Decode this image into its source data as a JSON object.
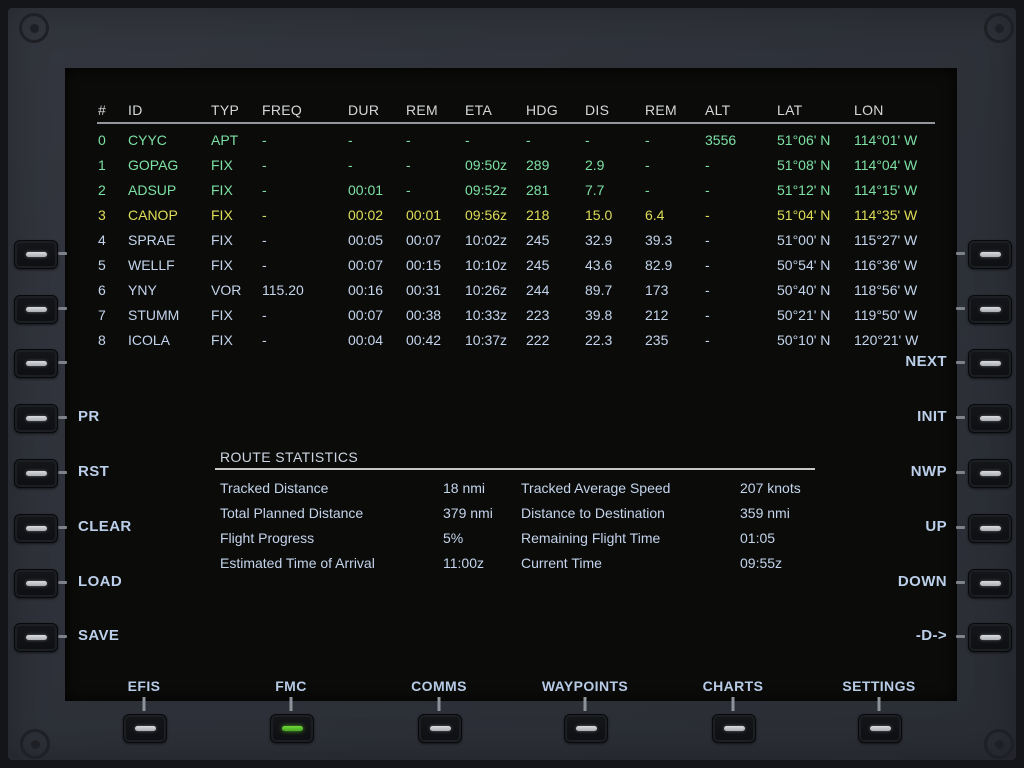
{
  "colors": {
    "green": "#7de0a4",
    "yellow": "#dedd58",
    "white": "#c4d4ec",
    "header": "#d6d7d9",
    "active_led": "#5cc42e"
  },
  "screen": {
    "table": {
      "headers": [
        "#",
        "ID",
        "TYP",
        "FREQ",
        "DUR",
        "REM",
        "ETA",
        "HDG",
        "DIS",
        "REM",
        "ALT",
        "LAT",
        "LON"
      ],
      "rows": [
        {
          "color": "green",
          "cells": [
            "0",
            "CYYC",
            "APT",
            "-",
            "-",
            "-",
            "-",
            "-",
            "-",
            "-",
            "3556",
            "51°06' N",
            "114°01' W"
          ]
        },
        {
          "color": "green",
          "cells": [
            "1",
            "GOPAG",
            "FIX",
            "-",
            "-",
            "-",
            "09:50z",
            "289",
            "2.9",
            "-",
            "-",
            "51°08' N",
            "114°04' W"
          ]
        },
        {
          "color": "green",
          "cells": [
            "2",
            "ADSUP",
            "FIX",
            "-",
            "00:01",
            "-",
            "09:52z",
            "281",
            "7.7",
            "-",
            "-",
            "51°12' N",
            "114°15' W"
          ]
        },
        {
          "color": "yellow",
          "cells": [
            "3",
            "CANOP",
            "FIX",
            "-",
            "00:02",
            "00:01",
            "09:56z",
            "218",
            "15.0",
            "6.4",
            "-",
            "51°04' N",
            "114°35' W"
          ]
        },
        {
          "color": "white",
          "cells": [
            "4",
            "SPRAE",
            "FIX",
            "-",
            "00:05",
            "00:07",
            "10:02z",
            "245",
            "32.9",
            "39.3",
            "-",
            "51°00' N",
            "115°27' W"
          ]
        },
        {
          "color": "white",
          "cells": [
            "5",
            "WELLF",
            "FIX",
            "-",
            "00:07",
            "00:15",
            "10:10z",
            "245",
            "43.6",
            "82.9",
            "-",
            "50°54' N",
            "116°36' W"
          ]
        },
        {
          "color": "white",
          "cells": [
            "6",
            "YNY",
            "VOR",
            "115.20",
            "00:16",
            "00:31",
            "10:26z",
            "244",
            "89.7",
            "173",
            "-",
            "50°40' N",
            "118°56' W"
          ]
        },
        {
          "color": "white",
          "cells": [
            "7",
            "STUMM",
            "FIX",
            "-",
            "00:07",
            "00:38",
            "10:33z",
            "223",
            "39.8",
            "212",
            "-",
            "50°21' N",
            "119°50' W"
          ]
        },
        {
          "color": "white",
          "cells": [
            "8",
            "ICOLA",
            "FIX",
            "-",
            "00:04",
            "00:42",
            "10:37z",
            "222",
            "22.3",
            "235",
            "-",
            "50°10' N",
            "120°21' W"
          ]
        }
      ]
    },
    "left_buttons": {
      "labels": [
        "",
        "",
        "",
        "PR",
        "RST",
        "CLEAR",
        "LOAD",
        "SAVE"
      ]
    },
    "right_buttons": {
      "labels": [
        "",
        "",
        "NEXT",
        "INIT",
        "NWP",
        "UP",
        "DOWN",
        "-D->"
      ]
    },
    "stats": {
      "title": "ROUTE STATISTICS",
      "items": [
        {
          "label": "Tracked Distance",
          "value": "18 nmi"
        },
        {
          "label": "Total Planned Distance",
          "value": "379 nmi"
        },
        {
          "label": "Flight Progress",
          "value": "5%"
        },
        {
          "label": "Estimated Time of Arrival",
          "value": "11:00z"
        },
        {
          "label": "Tracked Average Speed",
          "value": "207 knots"
        },
        {
          "label": "Distance to Destination",
          "value": "359 nmi"
        },
        {
          "label": "Remaining Flight Time",
          "value": "01:05"
        },
        {
          "label": "Current Time",
          "value": "09:55z"
        }
      ]
    },
    "tabs": [
      {
        "label": "EFIS",
        "active": false
      },
      {
        "label": "FMC",
        "active": true
      },
      {
        "label": "COMMS",
        "active": false
      },
      {
        "label": "WAYPOINTS",
        "active": false
      },
      {
        "label": "CHARTS",
        "active": false
      },
      {
        "label": "SETTINGS",
        "active": false
      }
    ]
  }
}
